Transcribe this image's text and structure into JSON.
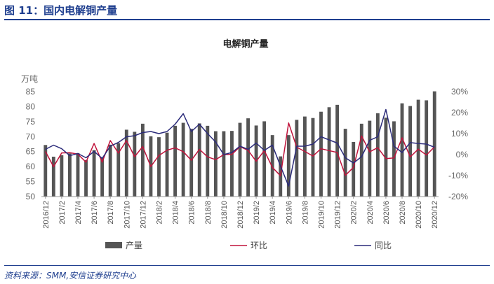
{
  "header": {
    "title": "图 11：国内电解铜产量"
  },
  "footer": {
    "source": "资料来源：SMM,安信证券研究中心"
  },
  "chart_data": {
    "type": "bar",
    "title": "电解铜产量",
    "left_unit": "万吨",
    "ylim": [
      50,
      85
    ],
    "y_ticks": [
      "50",
      "55",
      "60",
      "65",
      "70",
      "75",
      "80",
      "85"
    ],
    "y2lim": [
      -20,
      30
    ],
    "y2_ticks": [
      "-20%",
      "-10%",
      "0%",
      "10%",
      "20%",
      "30%"
    ],
    "grid": false,
    "legend_position": "bottom",
    "x_tick_labels": [
      "2016/12",
      "2017/2",
      "2017/4",
      "2017/6",
      "2017/8",
      "2017/10",
      "2017/12",
      "2018/2",
      "2018/4",
      "2018/6",
      "2018/8",
      "2018/10",
      "2018/12",
      "2019/2",
      "2019/4",
      "2019/6",
      "2019/8",
      "2019/10",
      "2019/12",
      "2020/2",
      "2020/4",
      "2020/6",
      "2020/8",
      "2020/10",
      "2020/12"
    ],
    "categories": [
      "2016/12",
      "2017/1",
      "2017/2",
      "2017/3",
      "2017/4",
      "2017/5",
      "2017/6",
      "2017/7",
      "2017/8",
      "2017/9",
      "2017/10",
      "2017/11",
      "2017/12",
      "2018/1",
      "2018/2",
      "2018/3",
      "2018/4",
      "2018/5",
      "2018/6",
      "2018/7",
      "2018/8",
      "2018/9",
      "2018/10",
      "2018/11",
      "2018/12",
      "2019/1",
      "2019/2",
      "2019/3",
      "2019/4",
      "2019/5",
      "2019/6",
      "2019/7",
      "2019/8",
      "2019/9",
      "2019/10",
      "2019/11",
      "2019/12",
      "2020/1",
      "2020/2",
      "2020/3",
      "2020/4",
      "2020/5",
      "2020/6",
      "2020/7",
      "2020/8",
      "2020/9",
      "2020/10",
      "2020/11",
      "2020/12"
    ],
    "colors": {
      "bar": "#555555",
      "mom": "#c0143c",
      "yoy": "#2b2b7a"
    },
    "series": [
      {
        "name": "产量",
        "axis": "left",
        "type": "bar",
        "values": [
          67.2,
          63.3,
          63.8,
          64.4,
          64.5,
          62.2,
          65.5,
          63.1,
          67.3,
          67.8,
          72.3,
          71.6,
          74.3,
          70.1,
          69.8,
          71.3,
          73.6,
          74.6,
          72.6,
          74.4,
          73.6,
          71.8,
          71.8,
          71.9,
          74.6,
          76.1,
          73.7,
          75.1,
          70.5,
          63.4,
          70.5,
          75.6,
          76.7,
          76.2,
          78.3,
          79.8,
          80.6,
          72.6,
          68.2,
          74.3,
          75.3,
          77.8,
          76.3,
          75.1,
          81.1,
          80.2,
          82.3,
          82.1,
          85.1
        ]
      },
      {
        "name": "环比",
        "axis": "right",
        "type": "line",
        "values": [
          1.5,
          -5.8,
          0.8,
          0.9,
          0.2,
          -3.6,
          5.3,
          -3.6,
          6.7,
          0.7,
          6.7,
          -1.0,
          3.8,
          -5.7,
          -0.4,
          2.1,
          3.2,
          1.4,
          -2.7,
          2.5,
          -1.1,
          -2.4,
          0.0,
          0.1,
          3.8,
          2.0,
          -3.2,
          1.9,
          -6.1,
          -10.1,
          15.1,
          3.5,
          1.5,
          -0.7,
          2.8,
          1.9,
          1.0,
          -9.9,
          -6.1,
          8.9,
          1.3,
          3.3,
          -1.9,
          -1.6,
          8.0,
          -1.1,
          2.6,
          -0.2,
          3.7
        ]
      },
      {
        "name": "同比",
        "axis": "right",
        "type": "line",
        "values": [
          2.5,
          4.5,
          2.8,
          -0.5,
          0.5,
          -1.5,
          1.5,
          -1.8,
          4.0,
          5.8,
          8.5,
          9.0,
          10.5,
          11.0,
          10.0,
          11.0,
          14.5,
          19.5,
          11.0,
          14.5,
          10.0,
          6.0,
          0.0,
          1.0,
          4.0,
          2.5,
          5.5,
          2.0,
          4.5,
          -5.5,
          -15.0,
          4.0,
          4.0,
          5.0,
          8.5,
          7.0,
          5.5,
          -1.5,
          -4.0,
          -1.0,
          6.8,
          8.5,
          21.5,
          4.0,
          1.0,
          5.7,
          5.3,
          5.0,
          3.5
        ]
      }
    ]
  }
}
